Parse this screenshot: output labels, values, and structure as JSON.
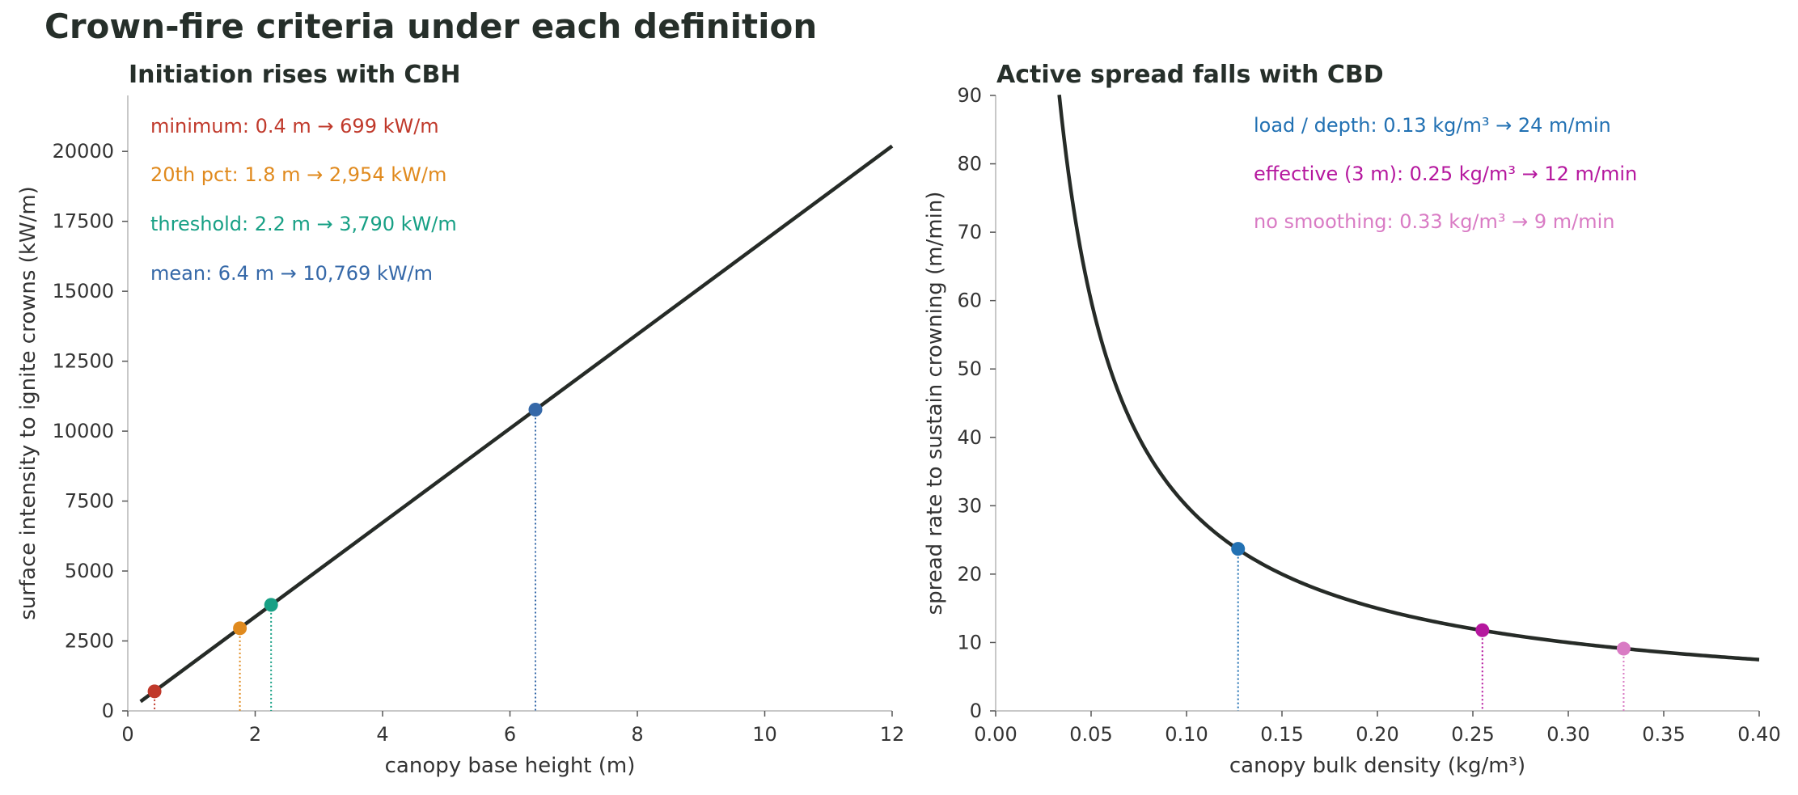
{
  "suptitle": "Crown-fire criteria under each definition",
  "chart_data": [
    {
      "type": "line",
      "title": "Initiation rises with CBH",
      "xlabel": "canopy base height  (m)",
      "ylabel": "surface intensity to ignite crowns  (kW/m)",
      "xlim": [
        0,
        12
      ],
      "ylim": [
        0,
        22000
      ],
      "xticks": [
        0,
        2,
        4,
        6,
        8,
        10,
        12
      ],
      "xtick_labels": [
        "0",
        "2",
        "4",
        "6",
        "8",
        "10",
        "12"
      ],
      "yticks": [
        0,
        2500,
        5000,
        7500,
        10000,
        12500,
        15000,
        17500,
        20000
      ],
      "ytick_labels": [
        "0",
        "2500",
        "5000",
        "7500",
        "10000",
        "12500",
        "15000",
        "17500",
        "20000"
      ],
      "grid": false,
      "curve": {
        "x": [
          0.2,
          12
        ],
        "y": [
          336,
          20190
        ],
        "color": "#262b27"
      },
      "points": [
        {
          "x": 0.42,
          "y": 699,
          "color": "#c0392b",
          "label": "minimum:  0.4 m  →  699 kW/m"
        },
        {
          "x": 1.76,
          "y": 2954,
          "color": "#e08a1e",
          "label": "20th pct:  1.8 m  →  2,954 kW/m"
        },
        {
          "x": 2.25,
          "y": 3790,
          "color": "#17a085",
          "label": "threshold:  2.2 m  →  3,790 kW/m"
        },
        {
          "x": 6.4,
          "y": 10769,
          "color": "#3568a8",
          "label": "mean:  6.4 m  →  10,769 kW/m"
        }
      ]
    },
    {
      "type": "line",
      "title": "Active spread falls with CBD",
      "xlabel": "canopy bulk density  (kg/m³)",
      "ylabel": "spread rate to sustain crowning  (m/min)",
      "xlim": [
        0,
        0.4
      ],
      "ylim": [
        0,
        90
      ],
      "xticks": [
        0,
        0.05,
        0.1,
        0.15,
        0.2,
        0.25,
        0.3,
        0.35,
        0.4
      ],
      "xtick_labels": [
        "0.00",
        "0.05",
        "0.10",
        "0.15",
        "0.20",
        "0.25",
        "0.30",
        "0.35",
        "0.40"
      ],
      "yticks": [
        0,
        10,
        20,
        30,
        40,
        50,
        60,
        70,
        80,
        90
      ],
      "ytick_labels": [
        "0",
        "10",
        "20",
        "30",
        "40",
        "50",
        "60",
        "70",
        "80",
        "90"
      ],
      "grid": false,
      "curve": {
        "function": "3 / x",
        "x_range": [
          0.0333,
          0.4
        ],
        "color": "#262b27"
      },
      "points": [
        {
          "x": 0.127,
          "y": 23.7,
          "color": "#2271b3",
          "label": "load / depth:  0.13 kg/m³  →  24 m/min"
        },
        {
          "x": 0.255,
          "y": 11.8,
          "color": "#b5179e",
          "label": "effective (3 m):  0.25 kg/m³  →  12 m/min"
        },
        {
          "x": 0.329,
          "y": 9.1,
          "color": "#d97bc4",
          "label": "no smoothing:  0.33 kg/m³  →  9 m/min"
        }
      ]
    }
  ]
}
